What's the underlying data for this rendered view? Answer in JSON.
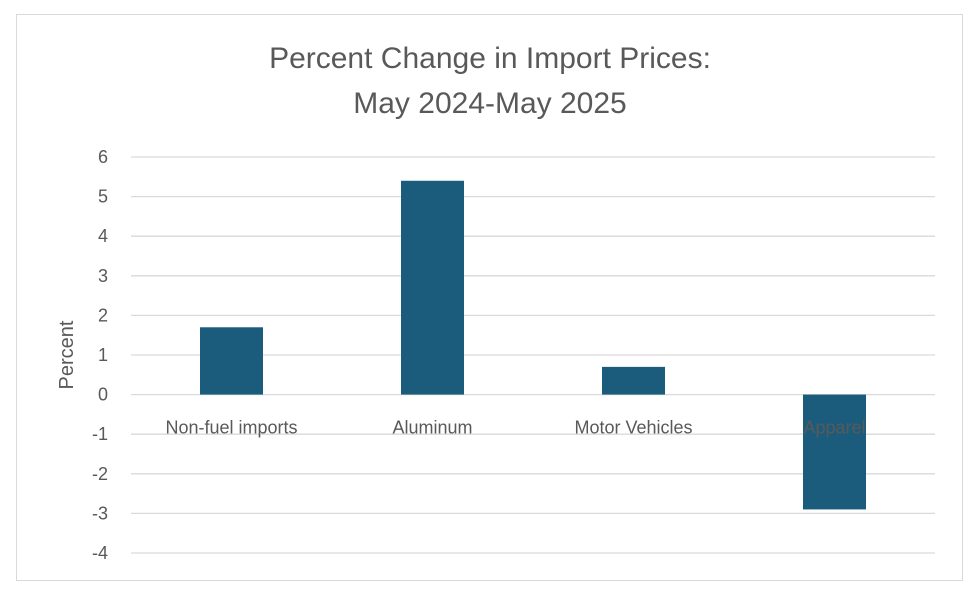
{
  "chart_data": {
    "type": "bar",
    "title": "Percent Change in Import Prices:",
    "subtitle": "May 2024-May 2025",
    "xlabel": "",
    "ylabel": "Percent",
    "categories": [
      "Non-fuel imports",
      "Aluminum",
      "Motor Vehicles",
      "Apparel"
    ],
    "values": [
      1.7,
      5.4,
      0.7,
      -2.9
    ],
    "ylim": [
      -4,
      6
    ],
    "yticks": [
      6,
      5,
      4,
      3,
      2,
      1,
      0,
      -1,
      -2,
      -3,
      -4
    ],
    "grid": true,
    "legend": "none",
    "bar_color": "#1b5c7d",
    "grid_color": "#d9d9d9"
  }
}
